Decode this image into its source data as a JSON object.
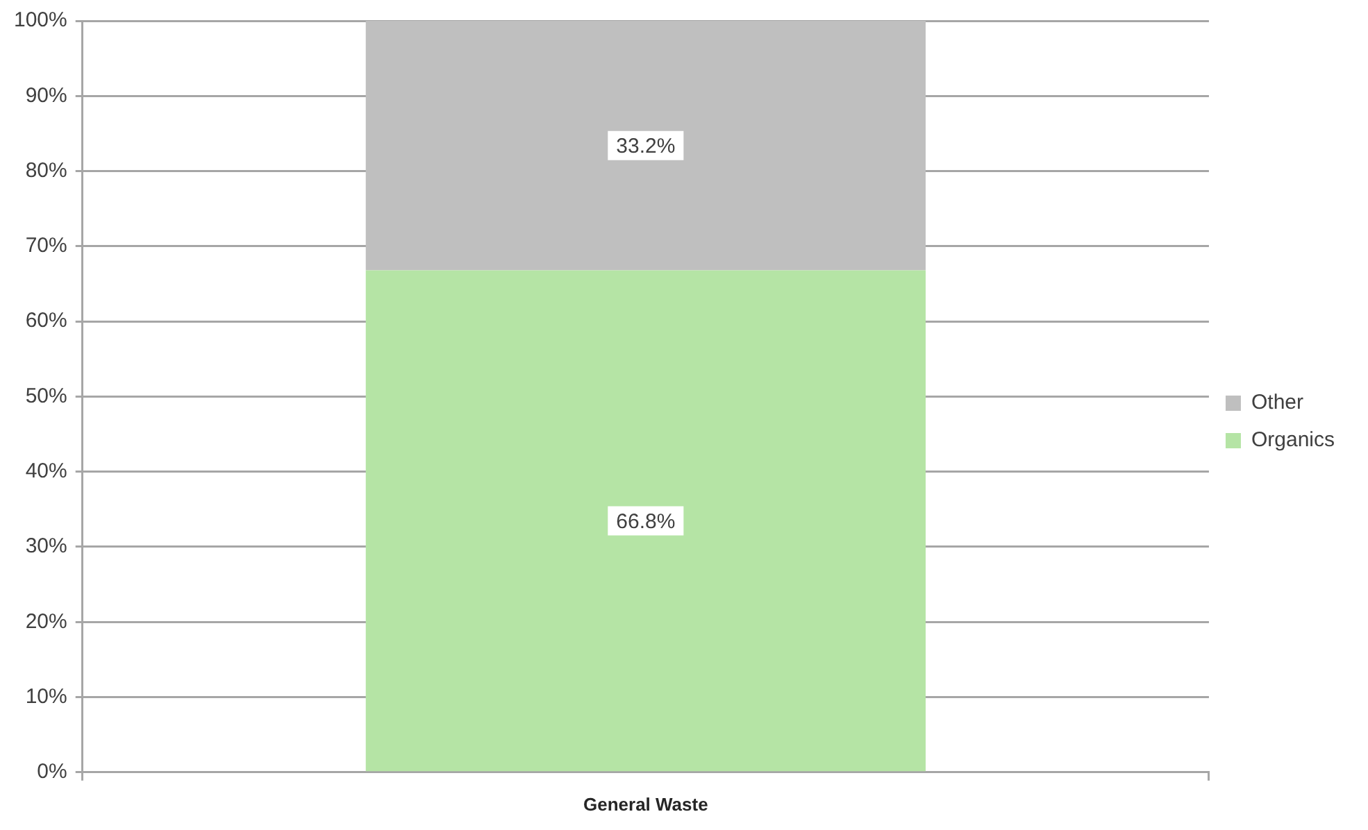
{
  "chart_data": {
    "type": "bar",
    "stacked": true,
    "categories": [
      "General Waste"
    ],
    "series": [
      {
        "name": "Organics",
        "color": "#b5e4a5",
        "values": [
          66.8
        ],
        "value_labels": [
          "66.8%"
        ]
      },
      {
        "name": "Other",
        "color": "#bfbfbf",
        "values": [
          33.2
        ],
        "value_labels": [
          "33.2%"
        ]
      }
    ],
    "ylim": [
      0,
      100
    ],
    "yticks": [
      {
        "value": 0,
        "label": "0%"
      },
      {
        "value": 10,
        "label": "10%"
      },
      {
        "value": 20,
        "label": "20%"
      },
      {
        "value": 30,
        "label": "30%"
      },
      {
        "value": 40,
        "label": "40%"
      },
      {
        "value": 50,
        "label": "50%"
      },
      {
        "value": 60,
        "label": "60%"
      },
      {
        "value": 70,
        "label": "70%"
      },
      {
        "value": 80,
        "label": "80%"
      },
      {
        "value": 90,
        "label": "90%"
      },
      {
        "value": 100,
        "label": "100%"
      }
    ],
    "grid": "y",
    "legend": "right"
  }
}
